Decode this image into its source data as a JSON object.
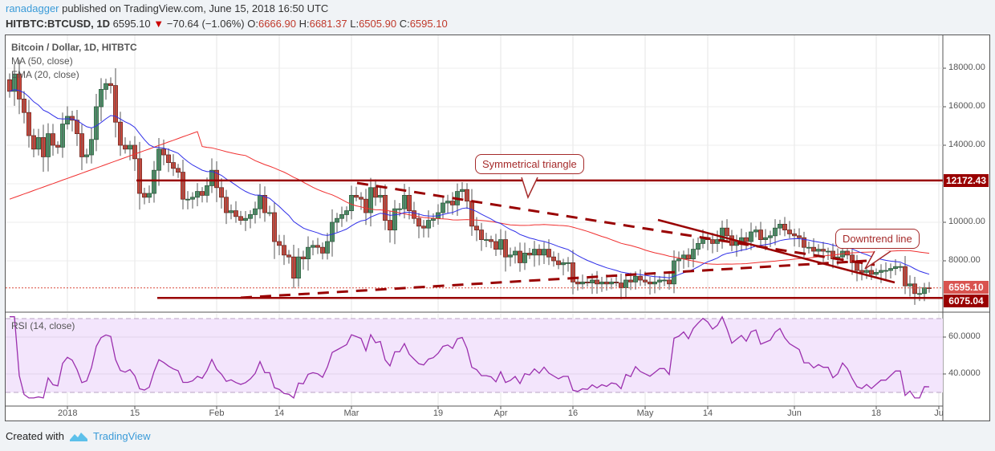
{
  "header": {
    "author": "ranadagger",
    "published_text": " published on TradingView.com, June 15, 2018 16:50 UTC",
    "symbol": "HITBTC:BTCUSD, 1D",
    "last": "6595.10",
    "change": "−70.64 (−1.06%)",
    "open_label": "O:",
    "open": "6666.90",
    "high_label": "H:",
    "high": "6681.37",
    "low_label": "L:",
    "low": "6505.90",
    "close_label": "C:",
    "close": "6595.10",
    "down_arrow": "▼"
  },
  "legend": {
    "title": "Bitcoin / Dollar, 1D, HITBTC",
    "ma": "MA (50, close)",
    "ema": "EMA (20, close)",
    "rsi": "RSI (14, close)"
  },
  "annotations": {
    "triangle": "Symmetrical triangle",
    "downtrend": "Downtrend line"
  },
  "price_labels": {
    "resistance": "12172.43",
    "last": "6595.10",
    "support": "6075.04"
  },
  "footer": {
    "created_with": "Created with",
    "brand": "TradingView"
  },
  "colors": {
    "up": "#4f9a6e",
    "down": "#d9483b",
    "ma50": "#f03030",
    "ema20": "#2f2fe8",
    "rsi": "#9b2fae",
    "rsi_band": "#f3e5fc",
    "trendline": "#990000",
    "label_red": "#990000",
    "label_last": "#d9534f"
  },
  "chart_data": [
    {
      "type": "candlestick",
      "title": "Bitcoin / Dollar, 1D, HITBTC",
      "y_ticks": [
        8000,
        10000,
        12000,
        14000,
        16000,
        18000
      ],
      "y_tick_labels": [
        "8000.00",
        "10000.00",
        "14000.00",
        "16000.00",
        "18000.00"
      ],
      "ylim": [
        5500,
        19500
      ],
      "x_tick_labels": [
        "2018",
        "15",
        "Feb",
        "14",
        "Mar",
        "19",
        "Apr",
        "16",
        "May",
        "14",
        "Jun",
        "18",
        "Ju"
      ],
      "x_tick_days": [
        0,
        14,
        31,
        44,
        59,
        77,
        90,
        105,
        120,
        133,
        151,
        168,
        181
      ],
      "start_day": -12,
      "closes": [
        16800,
        17700,
        16400,
        15700,
        14500,
        13800,
        14400,
        13400,
        14600,
        14000,
        13900,
        15100,
        15500,
        15300,
        14600,
        13400,
        13500,
        14300,
        16000,
        16900,
        17200,
        17100,
        15200,
        14000,
        13800,
        14000,
        13300,
        11500,
        11300,
        11500,
        12700,
        13800,
        13500,
        13100,
        12800,
        12600,
        11200,
        11200,
        11300,
        11600,
        11400,
        11900,
        12700,
        11800,
        11300,
        10500,
        10600,
        10300,
        10100,
        10200,
        10400,
        10700,
        11400,
        10500,
        10500,
        9000,
        8800,
        8300,
        8200,
        7100,
        8200,
        8100,
        8700,
        8800,
        8700,
        8400,
        9000,
        10000,
        10200,
        10400,
        10600,
        11400,
        11300,
        11200,
        10500,
        11800,
        11300,
        11400,
        10100,
        9600,
        10700,
        10700,
        11400,
        10600,
        10200,
        9800,
        9700,
        10100,
        10200,
        10500,
        11000,
        11100,
        10900,
        11600,
        11700,
        11100,
        9800,
        9600,
        9100,
        9100,
        9000,
        8600,
        9100,
        8200,
        8300,
        8500,
        7900,
        8400,
        8300,
        8600,
        8300,
        8600,
        8200,
        8000,
        7800,
        7900,
        7900,
        6900,
        6800,
        6900,
        6850,
        7000,
        6800,
        6900,
        6800,
        6900,
        6850,
        6600,
        7000,
        6900,
        7200,
        7000,
        6900,
        6800,
        6900,
        7000,
        7000,
        6800,
        8000,
        8100,
        8300,
        8100,
        8600,
        8900,
        9200,
        9100,
        8900,
        9100,
        9700,
        9300,
        8800,
        9000,
        9200,
        9000,
        9500,
        9600,
        9100,
        9200,
        9300,
        9700,
        9900,
        9600,
        9400,
        9300,
        9200,
        8700,
        8700,
        8500,
        8600,
        8500,
        8500,
        8100,
        8200,
        8500,
        8300,
        7900,
        7500,
        7400,
        7500,
        7300,
        7400,
        7500,
        7500,
        7600,
        7700,
        7700,
        6700,
        6800,
        6300,
        6300,
        6600,
        6595
      ],
      "resistance": 12172.43,
      "support": 6075.04,
      "last": 6595.1,
      "annotations": [
        "Symmetrical triangle",
        "Downtrend line"
      ]
    },
    {
      "type": "line",
      "title": "RSI (14, close)",
      "y_ticks": [
        40,
        60
      ],
      "y_tick_labels": [
        "40.0000",
        "60.0000"
      ],
      "band": [
        30,
        70
      ],
      "ylim": [
        20,
        73
      ]
    }
  ]
}
